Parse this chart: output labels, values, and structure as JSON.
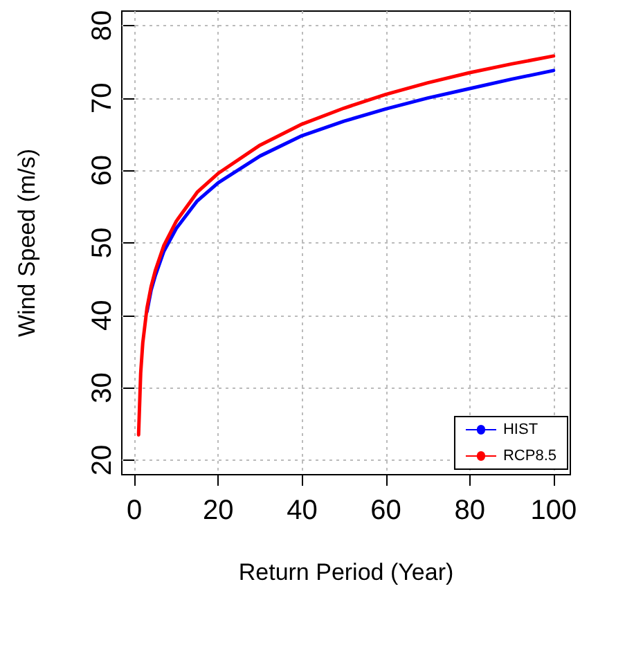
{
  "chart_data": {
    "type": "line",
    "xlabel": "Return Period (Year)",
    "ylabel": "Wind Speed (m/s)",
    "x": [
      1,
      1.5,
      2,
      3,
      4,
      5,
      7,
      10,
      15,
      20,
      30,
      40,
      50,
      60,
      70,
      80,
      90,
      100
    ],
    "series": [
      {
        "name": "HIST",
        "color": "#0000ff",
        "values": [
          null,
          null,
          null,
          40.5,
          43.5,
          45.5,
          48.8,
          52,
          55.8,
          58.3,
          62,
          64.8,
          66.8,
          68.5,
          70,
          71.3,
          72.6,
          73.8
        ]
      },
      {
        "name": "RCP8.5",
        "color": "#ff0000",
        "values": [
          23.5,
          32,
          36.2,
          41,
          44,
          46.2,
          49.6,
          53,
          57,
          59.6,
          63.5,
          66.4,
          68.6,
          70.5,
          72.1,
          73.5,
          74.7,
          75.8
        ]
      }
    ],
    "xlim": [
      -3,
      104
    ],
    "xticks": [
      0,
      20,
      40,
      60,
      80,
      100
    ],
    "ylim": [
      18,
      82
    ],
    "yticks": [
      20,
      30,
      40,
      50,
      60,
      70,
      80
    ],
    "grid": true,
    "legend": "bottom right",
    "marker": "none",
    "line_style": "solid"
  }
}
